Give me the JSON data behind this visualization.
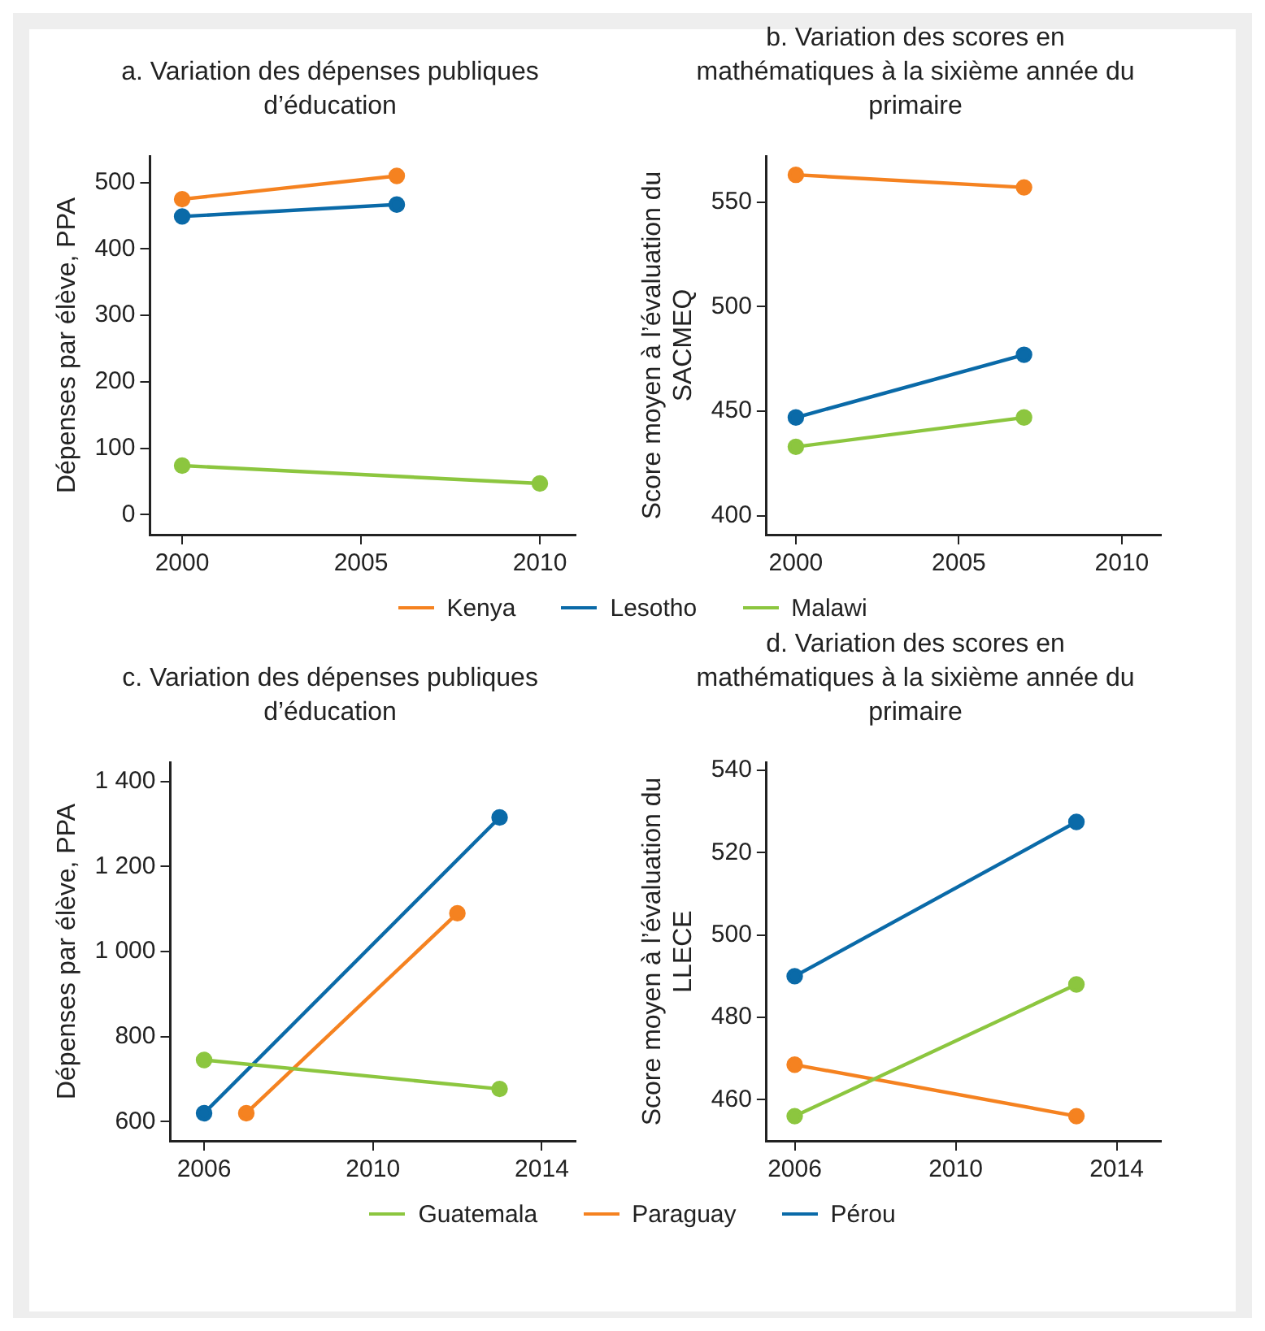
{
  "chart_data": [
    {
      "type": "line",
      "title": "a. Variation des dépenses publiques d’éducation",
      "ylabel": "Dépenses par élève, PPA",
      "xlim": [
        1999.1,
        2011
      ],
      "xticks": [
        2000,
        2005,
        2010
      ],
      "ylim": [
        -30,
        540
      ],
      "yticks": [
        0,
        100,
        200,
        300,
        400,
        500
      ],
      "grid": false,
      "legend": "bottom",
      "marker": "circle",
      "line_style": "solid",
      "series": [
        {
          "name": "Kenya",
          "color": "#f58220",
          "x": [
            2000,
            2006
          ],
          "values": [
            475,
            510
          ]
        },
        {
          "name": "Lesotho",
          "color": "#0a6aa8",
          "x": [
            2000,
            2006
          ],
          "values": [
            449,
            467
          ]
        },
        {
          "name": "Malawi",
          "color": "#8cc63f",
          "x": [
            2000,
            2010
          ],
          "values": [
            74,
            47
          ]
        }
      ]
    },
    {
      "type": "line",
      "title": "b. Variation des scores en mathématiques à la sixième année du primaire",
      "ylabel": "Score moyen à l’évaluation du SACMEQ",
      "xlim": [
        1999.1,
        2011.2
      ],
      "xticks": [
        2000,
        2005,
        2010
      ],
      "ylim": [
        391,
        572
      ],
      "yticks": [
        400,
        450,
        500,
        550
      ],
      "grid": false,
      "marker": "circle",
      "line_style": "solid",
      "series": [
        {
          "color": "#f58220",
          "x": [
            2000,
            2007
          ],
          "values": [
            563,
            557
          ]
        },
        {
          "color": "#0a6aa8",
          "x": [
            2000,
            2007
          ],
          "values": [
            447,
            477
          ]
        },
        {
          "color": "#8cc63f",
          "x": [
            2000,
            2007
          ],
          "values": [
            433,
            447
          ]
        }
      ]
    },
    {
      "type": "line",
      "title": "c. Variation des dépenses publiques d’éducation",
      "ylabel": "Dépenses par élève, PPA",
      "xlim": [
        2005.2,
        2014.8
      ],
      "xticks": [
        2006,
        2010,
        2014
      ],
      "ylim": [
        555,
        1445
      ],
      "yticks": [
        600,
        800,
        {
          "value": 1000,
          "label": "1 000"
        },
        {
          "value": 1200,
          "label": "1 200"
        },
        {
          "value": 1400,
          "label": "1 400"
        }
      ],
      "grid": false,
      "legend": "bottom",
      "marker": "circle",
      "line_style": "solid",
      "series": [
        {
          "name": "Guatemala",
          "color": "#8cc63f",
          "x": [
            2006,
            2013
          ],
          "values": [
            745,
            677
          ]
        },
        {
          "name": "Paraguay",
          "color": "#f58220",
          "x": [
            2007,
            2012
          ],
          "values": [
            620,
            1090
          ]
        },
        {
          "name": "Pérou",
          "color": "#0a6aa8",
          "x": [
            2006,
            2013
          ],
          "values": [
            620,
            1315
          ]
        }
      ]
    },
    {
      "type": "line",
      "title": "d. Variation des scores en mathématiques à la sixième année du primaire",
      "ylabel": "Score moyen à l’évaluation du LLECE",
      "xlim": [
        2005.3,
        2015.1
      ],
      "xticks": [
        2006,
        2010,
        2014
      ],
      "ylim": [
        450,
        542
      ],
      "yticks": [
        460,
        480,
        500,
        520,
        540
      ],
      "grid": false,
      "marker": "circle",
      "line_style": "solid",
      "series": [
        {
          "color": "#0a6aa8",
          "x": [
            2006,
            2013
          ],
          "values": [
            490,
            527.5
          ]
        },
        {
          "color": "#8cc63f",
          "x": [
            2006,
            2013
          ],
          "values": [
            456,
            488
          ]
        },
        {
          "color": "#f58220",
          "x": [
            2006,
            2013
          ],
          "values": [
            468.5,
            456
          ]
        }
      ]
    }
  ]
}
